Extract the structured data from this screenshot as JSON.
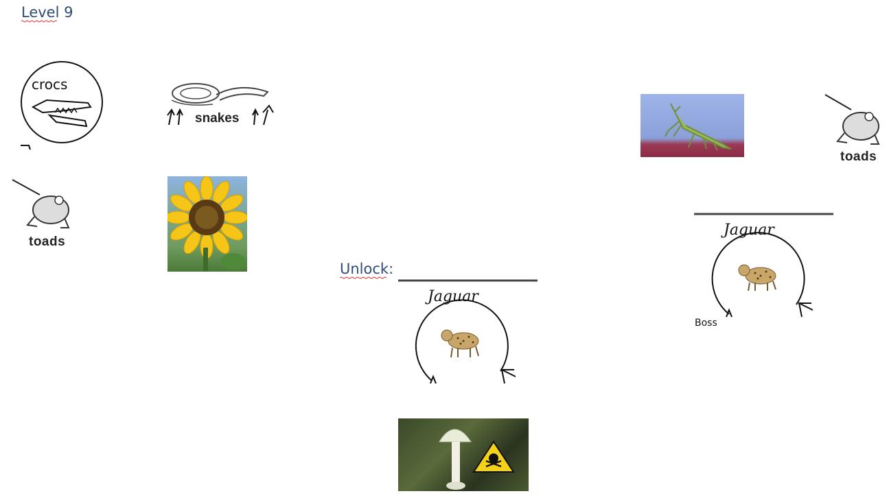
{
  "level": {
    "title": "Level 9"
  },
  "unlock": {
    "label": "Unlock:"
  },
  "sketches": {
    "crocs": "crocs",
    "snakes": "snakes",
    "toads_left": "toads",
    "toads_right": "toads",
    "jaguar_center": "Jaguar",
    "jaguar_right": "Jaguar"
  },
  "boss": {
    "label": "Boss"
  },
  "icons": {
    "crocodile": "crocodile-sketch",
    "snake": "snake-sketch",
    "toad": "toad-sketch",
    "jaguar": "jaguar-sketch",
    "sunflower": "sunflower-photo",
    "mantis": "mantis-photo",
    "mushroom": "poison-mushroom-photo",
    "hazard": "skull-crossbones-icon"
  },
  "colors": {
    "heading": "#2f4a7a",
    "spellcheck": "#e03030"
  }
}
